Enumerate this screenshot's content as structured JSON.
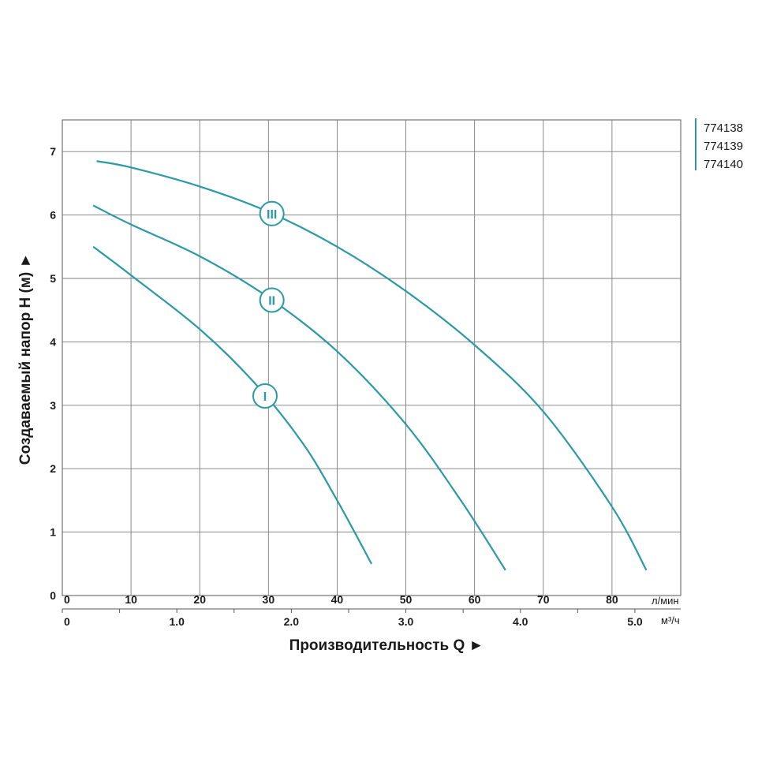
{
  "chart_data": {
    "type": "line",
    "ylabel": "Создаваемый напор H (м) ►",
    "xlabel": "Производительность Q ►",
    "x_unit_top": "л/мин",
    "x_unit_bottom": "м³/ч",
    "xlim": [
      0,
      90
    ],
    "ylim": [
      0,
      7.5
    ],
    "x_ticks": [
      "0",
      "10",
      "20",
      "30",
      "40",
      "50",
      "60",
      "70",
      "80"
    ],
    "x2_ticks": [
      "0",
      "1.0",
      "2.0",
      "3.0",
      "4.0",
      "5.0"
    ],
    "y_ticks": [
      "0",
      "1",
      "2",
      "3",
      "4",
      "5",
      "6",
      "7"
    ],
    "grid": true,
    "color": "#2a9aa6",
    "legend": [
      "774138",
      "774139",
      "774140"
    ],
    "series": [
      {
        "name": "I",
        "x": [
          4.5,
          10,
          20,
          28,
          35,
          40,
          45
        ],
        "y": [
          5.5,
          5.05,
          4.2,
          3.35,
          2.4,
          1.5,
          0.5
        ]
      },
      {
        "name": "II",
        "x": [
          4.5,
          10,
          20,
          30,
          40,
          50,
          58,
          64.5
        ],
        "y": [
          6.15,
          5.85,
          5.35,
          4.7,
          3.85,
          2.7,
          1.5,
          0.4
        ]
      },
      {
        "name": "III",
        "x": [
          5,
          10,
          20,
          30,
          40,
          50,
          60,
          70,
          80,
          85
        ],
        "y": [
          6.85,
          6.75,
          6.45,
          6.05,
          5.5,
          4.8,
          3.95,
          2.9,
          1.4,
          0.4
        ]
      }
    ]
  }
}
